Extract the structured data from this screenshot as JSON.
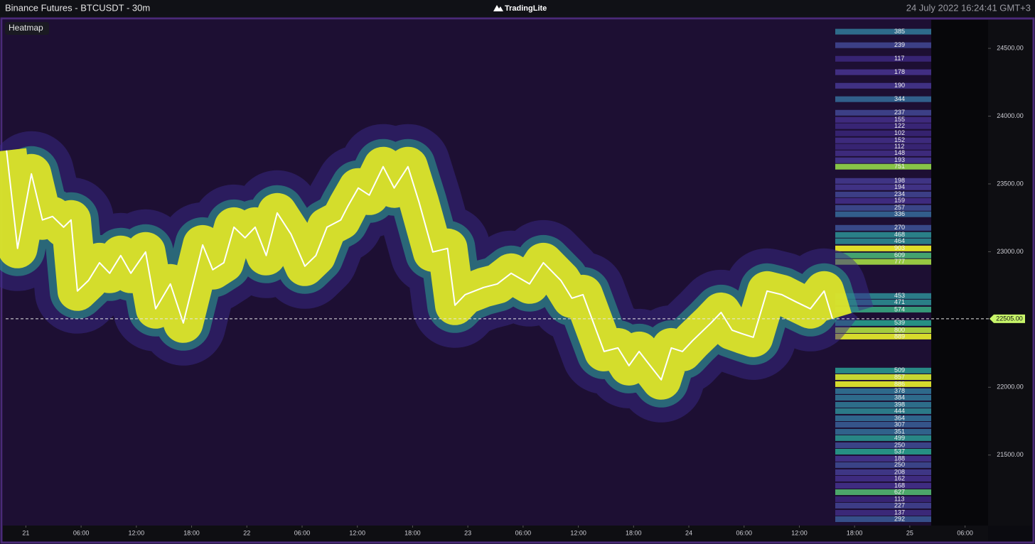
{
  "header": {
    "title": "Binance Futures - BTCUSDT - 30m",
    "brand": "TradingLite",
    "timestamp": "24 July 2022 16:24:41 GMT+3"
  },
  "chart_data": {
    "type": "line",
    "panel_label": "Heatmap",
    "color": "#ffffff",
    "x": [
      -2.1,
      -0.9,
      0.6,
      1.8,
      2.9,
      4.1,
      4.9,
      5.6,
      6.8,
      8.0,
      9.1,
      10.3,
      11.4,
      13.0,
      14.1,
      15.7,
      17.1,
      19.2,
      20.3,
      21.5,
      22.6,
      23.8,
      24.9,
      26.1,
      27.3,
      28.8,
      30.3,
      31.5,
      32.7,
      34.2,
      35.0,
      36.1,
      37.3,
      38.8,
      40.0,
      41.5,
      42.7,
      44.2,
      45.8,
      46.6,
      47.7,
      49.7,
      51.2,
      52.7,
      54.7,
      56.2,
      58.1,
      59.3,
      60.5,
      62.8,
      64.3,
      65.5,
      66.6,
      67.8,
      69.0,
      70.1,
      71.3,
      72.4,
      74.4,
      75.5,
      76.7,
      77.8,
      79.0,
      80.5,
      82.1,
      83.6,
      85.2,
      86.7,
      87.6
    ],
    "values": [
      23747,
      23024,
      23574,
      23234,
      23260,
      23181,
      23234,
      22710,
      22788,
      22919,
      22841,
      22972,
      22841,
      22998,
      22579,
      22762,
      22474,
      23050,
      22867,
      22919,
      23181,
      23103,
      23181,
      22972,
      23286,
      23129,
      22893,
      22972,
      23181,
      23234,
      23339,
      23470,
      23417,
      23627,
      23470,
      23627,
      23365,
      22998,
      23024,
      22605,
      22683,
      22736,
      22762,
      22841,
      22762,
      22919,
      22788,
      22657,
      22683,
      22264,
      22290,
      22159,
      22264,
      22159,
      22055,
      22290,
      22264,
      22343,
      22474,
      22552,
      22421,
      22395,
      22369,
      22710,
      22683,
      22631,
      22579,
      22710,
      22505
    ],
    "xlim": [
      -2.5,
      104.5
    ],
    "ylim": [
      20980,
      24710
    ],
    "xticks": [
      {
        "value": 0,
        "label": "21"
      },
      {
        "value": 6,
        "label": "06:00"
      },
      {
        "value": 12,
        "label": "12:00"
      },
      {
        "value": 18,
        "label": "18:00"
      },
      {
        "value": 24,
        "label": "22"
      },
      {
        "value": 30,
        "label": "06:00"
      },
      {
        "value": 36,
        "label": "12:00"
      },
      {
        "value": 42,
        "label": "18:00"
      },
      {
        "value": 48,
        "label": "23"
      },
      {
        "value": 54,
        "label": "06:00"
      },
      {
        "value": 60,
        "label": "12:00"
      },
      {
        "value": 66,
        "label": "18:00"
      },
      {
        "value": 72,
        "label": "24"
      },
      {
        "value": 78,
        "label": "06:00"
      },
      {
        "value": 84,
        "label": "12:00"
      },
      {
        "value": 90,
        "label": "18:00"
      },
      {
        "value": 96,
        "label": "25"
      },
      {
        "value": 102,
        "label": "06:00"
      }
    ],
    "yticks": [
      {
        "value": 21500,
        "label": "21500.00"
      },
      {
        "value": 22000,
        "label": "22000.00"
      },
      {
        "value": 23000,
        "label": "23000.00"
      },
      {
        "value": 23500,
        "label": "23500.00"
      },
      {
        "value": 24000,
        "label": "24000.00"
      },
      {
        "value": 24500,
        "label": "24500.00"
      }
    ],
    "current_price": {
      "value": 22505,
      "label": "22505.00"
    },
    "levels": {
      "prices": [
        24623,
        24523,
        24423,
        24324,
        24224,
        24125,
        24025,
        23973,
        23926,
        23873,
        23821,
        23774,
        23726,
        23674,
        23627,
        23522,
        23475,
        23422,
        23375,
        23323,
        23276,
        23176,
        23124,
        23077,
        23024,
        22972,
        22925,
        22673,
        22626,
        22573,
        22474,
        22421,
        22374,
        22123,
        22075,
        22023,
        21971,
        21923,
        21871,
        21824,
        21771,
        21724,
        21672,
        21625,
        21572,
        21525,
        21473,
        21426,
        21373,
        21326,
        21274,
        21226,
        21174,
        21127,
        21074,
        21027
      ],
      "sizes": [
        385,
        239,
        117,
        178,
        190,
        344,
        237,
        155,
        122,
        102,
        152,
        112,
        148,
        193,
        751,
        198,
        194,
        234,
        159,
        257,
        336,
        270,
        468,
        464,
        903,
        609,
        777,
        453,
        471,
        574,
        539,
        800,
        889,
        509,
        857,
        886,
        378,
        384,
        398,
        444,
        364,
        307,
        351,
        499,
        250,
        537,
        188,
        250,
        208,
        162,
        168,
        627,
        113,
        227,
        137,
        292
      ]
    }
  }
}
